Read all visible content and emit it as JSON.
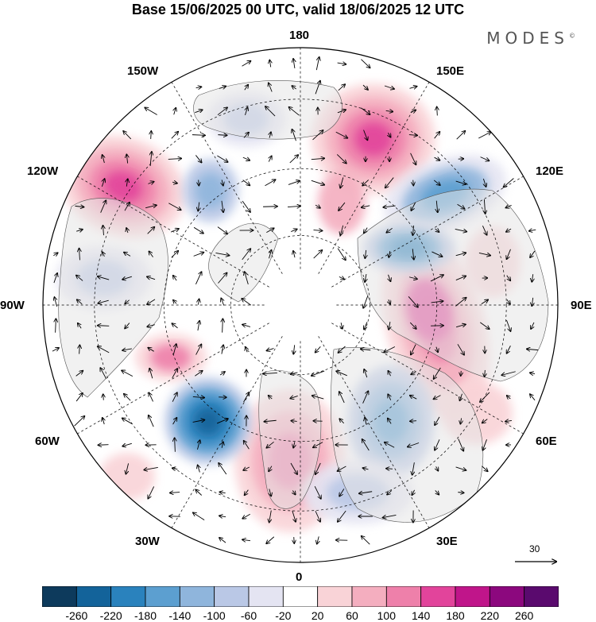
{
  "header": {
    "title": "Base 15/06/2025 00 UTC, valid 18/06/2025 12 UTC",
    "brand": "MODES",
    "brand_mark": "©"
  },
  "map": {
    "projection": "north polar stereographic",
    "longitude_labels": {
      "180": "180",
      "150W": "150W",
      "150E": "150E",
      "120W": "120W",
      "120E": "120E",
      "90W": "90W",
      "90E": "90E",
      "60W": "60W",
      "60E": "60E",
      "30W": "30W",
      "30E": "30E",
      "0": "0"
    },
    "vector_reference": "30"
  },
  "colorbar": {
    "labels": [
      "-260",
      "-220",
      "-180",
      "-140",
      "-100",
      "-60",
      "-20",
      "20",
      "60",
      "100",
      "140",
      "180",
      "220",
      "260"
    ],
    "colors": [
      "#0d3a5c",
      "#13639a",
      "#2a82bd",
      "#5c9fd0",
      "#8fb5dc",
      "#bac8e6",
      "#e4e4f2",
      "#ffffff",
      "#f9d3d7",
      "#f4aebf",
      "#ee80aa",
      "#e2449b",
      "#c0158a",
      "#8c087e",
      "#5a0a6e"
    ]
  }
}
